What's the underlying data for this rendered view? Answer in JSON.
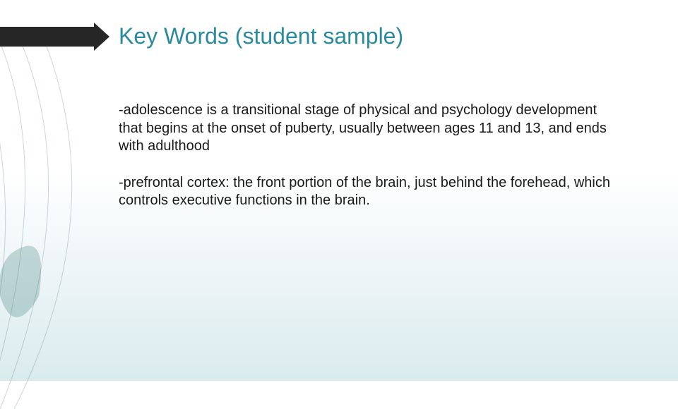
{
  "title": {
    "text": "Key Words (student sample)",
    "color": "#2a8a9e",
    "fontsize": 32
  },
  "arrow": {
    "shaft_color": "#262626",
    "head_color": "#262626"
  },
  "body": {
    "color": "#1a1a1a",
    "fontsize": 20,
    "paragraphs": [
      "-adolescence is a transitional stage of physical and psychology development that begins at the onset of puberty, usually between ages 11 and 13, and ends with adulthood",
      "-prefrontal cortex: the front portion of the brain, just behind the forehead, which controls executive functions in the brain."
    ]
  },
  "decoration": {
    "curve_stroke": "#6f8a8f",
    "curve_opacity": 0.35,
    "leaf_fill": "#3a7d7d",
    "leaf_opacity": 0.28
  },
  "background": {
    "top": "#ffffff",
    "bottom": "#d9ebee"
  }
}
